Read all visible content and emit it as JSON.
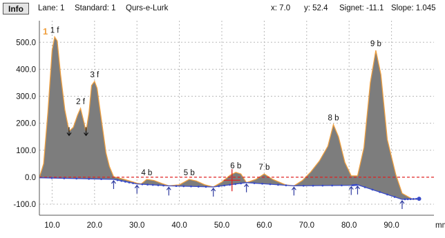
{
  "info_bar": {
    "button": "Info",
    "lane": "Lane: 1",
    "standard": "Standard: 1",
    "sample": "Qurs-e-Lurk",
    "x": "x: 7.0",
    "y": "y: 52.4",
    "signet": "Signet: -11.1",
    "slope": "Slope: 1.045"
  },
  "lane_marker": "1",
  "chart_data": {
    "type": "area",
    "xlabel": "mm",
    "ylabel": "",
    "xlim": [
      7,
      100
    ],
    "ylim": [
      -100,
      580
    ],
    "x_ticks": [
      10,
      20,
      30,
      40,
      50,
      60,
      70,
      80,
      90
    ],
    "x_tick_labels": [
      "10.0",
      "20.0",
      "30.0",
      "40.0",
      "50.0",
      "60.0",
      "70.0",
      "80.0",
      "90.0"
    ],
    "y_ticks": [
      500,
      400,
      300,
      200,
      100,
      0,
      -100
    ],
    "y_tick_labels": [
      "500.0",
      "400.0",
      "300.0",
      "200.0",
      "100.0",
      "0.0",
      "-100.0"
    ],
    "grid": true,
    "reference_line_y": 0,
    "cursor": {
      "x": 52.4,
      "y": -11.1
    },
    "profile": {
      "x": [
        7,
        8,
        9,
        10,
        10.6,
        11.2,
        12,
        13,
        14,
        15,
        16,
        16.7,
        17.4,
        18,
        18.7,
        19.3,
        20,
        20.6,
        21.2,
        22,
        22.7,
        23.5,
        24.5,
        27,
        30,
        31,
        32.3,
        34,
        36,
        37.5,
        40,
        42.3,
        44,
        46,
        48,
        50,
        52,
        53.3,
        54.5,
        55.8,
        58,
        60,
        62,
        65,
        67,
        69,
        71,
        73,
        75,
        76.3,
        77.5,
        79,
        80.5,
        82,
        83.5,
        85,
        86.3,
        87.5,
        89,
        91,
        92.5,
        95,
        96.5
      ],
      "y": [
        -2,
        50,
        240,
        470,
        520,
        505,
        380,
        250,
        170,
        185,
        230,
        255,
        210,
        170,
        240,
        340,
        355,
        330,
        260,
        170,
        90,
        40,
        2,
        -8,
        -22,
        -25,
        -8,
        -12,
        -24,
        -32,
        -28,
        -8,
        -14,
        -28,
        -36,
        -18,
        8,
        18,
        12,
        -20,
        -8,
        12,
        -8,
        -28,
        -32,
        -12,
        20,
        60,
        115,
        195,
        150,
        55,
        5,
        5,
        110,
        350,
        470,
        380,
        140,
        10,
        -60,
        -82,
        -80
      ]
    },
    "baseline": {
      "x": [
        7,
        24.5,
        30,
        37.5,
        48,
        55.8,
        67,
        80.5,
        82,
        92.5,
        96.5
      ],
      "y": [
        -2,
        -8,
        -25,
        -32,
        -36,
        -20,
        -32,
        -30,
        -28,
        -82,
        -80
      ]
    },
    "peaks": [
      {
        "label": "1 f",
        "x": 10.6,
        "y": 520
      },
      {
        "label": "2 f",
        "x": 16.7,
        "y": 255
      },
      {
        "label": "3 f",
        "x": 20,
        "y": 355
      },
      {
        "label": "4 b",
        "x": 32.3,
        "y": -8
      },
      {
        "label": "5 b",
        "x": 42.3,
        "y": -8
      },
      {
        "label": "6 b",
        "x": 53.3,
        "y": 18
      },
      {
        "label": "7 b",
        "x": 60,
        "y": 12
      },
      {
        "label": "8 b",
        "x": 76.3,
        "y": 195
      },
      {
        "label": "9 b",
        "x": 86.3,
        "y": 470
      }
    ],
    "boundaries_down": [
      {
        "x": 14,
        "y": 170
      },
      {
        "x": 18,
        "y": 170
      }
    ],
    "boundaries_up": [
      {
        "x": 24.5,
        "y": -8
      },
      {
        "x": 30,
        "y": -25
      },
      {
        "x": 37.5,
        "y": -32
      },
      {
        "x": 48,
        "y": -36
      },
      {
        "x": 55.8,
        "y": -20
      },
      {
        "x": 67,
        "y": -32
      },
      {
        "x": 80.5,
        "y": -30
      },
      {
        "x": 82,
        "y": -28
      },
      {
        "x": 92.5,
        "y": -82
      }
    ],
    "colors": {
      "fill": "#7d7d7d",
      "profile_line": "#f0a040",
      "baseline": "#3a4cc8",
      "reference_line": "#e02020",
      "cursor": "#e02020",
      "grid": "#b8b8b8",
      "marker": "#2e3aa0"
    }
  }
}
